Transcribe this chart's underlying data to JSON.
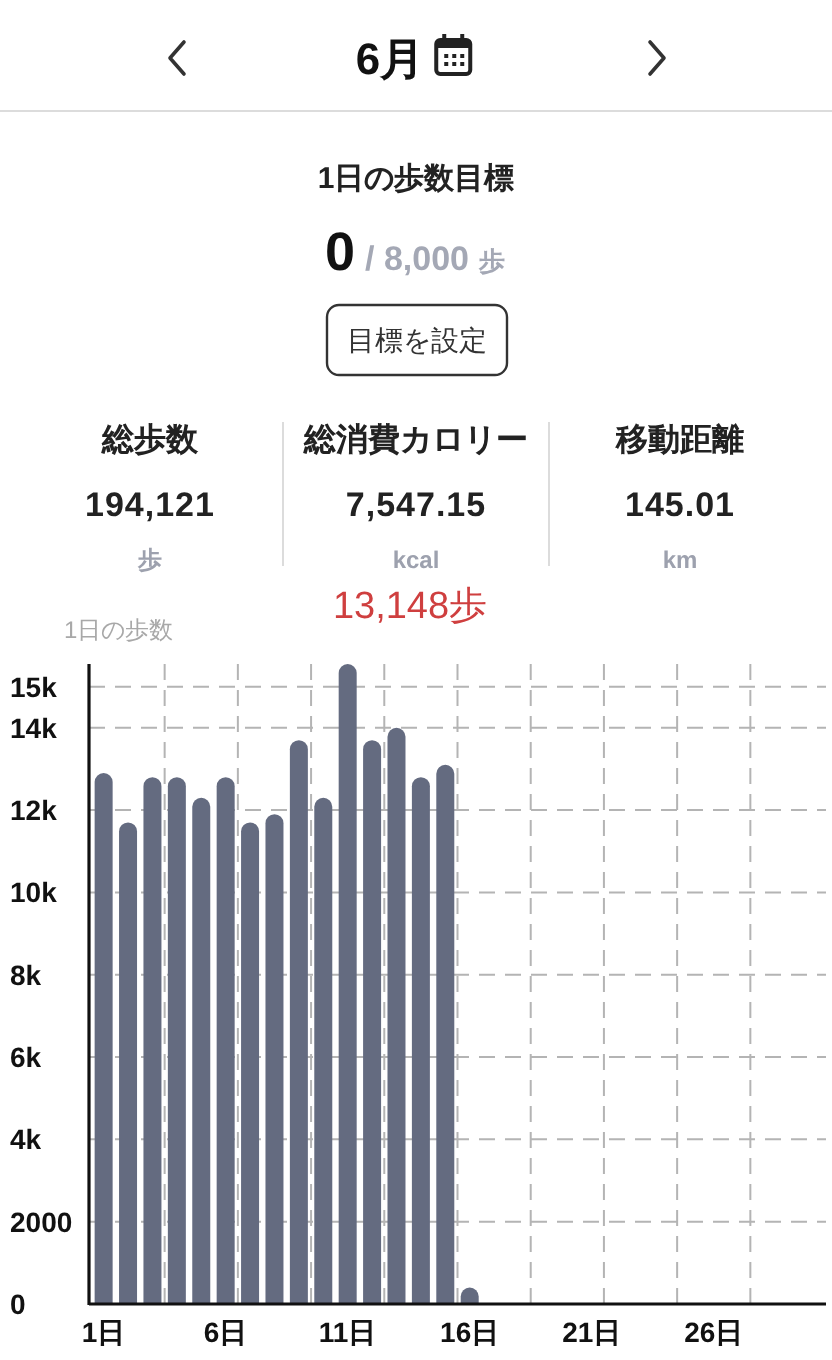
{
  "chart_data": [
    {
      "type": "other",
      "title": "6月",
      "annotations": [
        "1日の歩数目標",
        "0",
        "/ 8,000",
        "歩",
        "目標を設定",
        "総歩数",
        "194,121",
        "歩",
        "総消費カロリー",
        "7,547.15",
        "kcal",
        "移動距離",
        "145.01",
        "km"
      ]
    },
    {
      "type": "bar",
      "ylabel": "1日の歩数",
      "annotations": [
        "13,148歩"
      ],
      "categories": [
        "1日",
        null,
        null,
        null,
        null,
        "6日",
        null,
        null,
        null,
        null,
        "11日",
        null,
        null,
        null,
        null,
        "16日",
        null,
        null,
        null,
        null,
        "21日",
        null,
        null,
        null,
        null,
        "26日",
        null,
        null,
        null,
        null
      ],
      "values": [
        12900,
        11700,
        12800,
        12800,
        12300,
        12800,
        11700,
        11900,
        13700,
        12300,
        15550,
        13700,
        14000,
        12800,
        13100,
        400,
        null,
        null,
        null,
        null,
        null,
        null,
        null,
        null,
        null,
        null,
        null,
        null,
        null,
        null
      ],
      "color": "#646b80",
      "ylim": [
        0,
        15550
      ],
      "yticks": [
        0,
        2000,
        {
          "value": 4000,
          "label": "4k"
        },
        {
          "value": 6000,
          "label": "6k"
        },
        {
          "value": 8000,
          "label": "8k"
        },
        {
          "value": 10000,
          "label": "10k"
        },
        {
          "value": 12000,
          "label": "12k"
        },
        {
          "value": 14000,
          "label": "14k"
        },
        {
          "value": 15000,
          "label": "15k"
        }
      ],
      "grid": true
    }
  ]
}
